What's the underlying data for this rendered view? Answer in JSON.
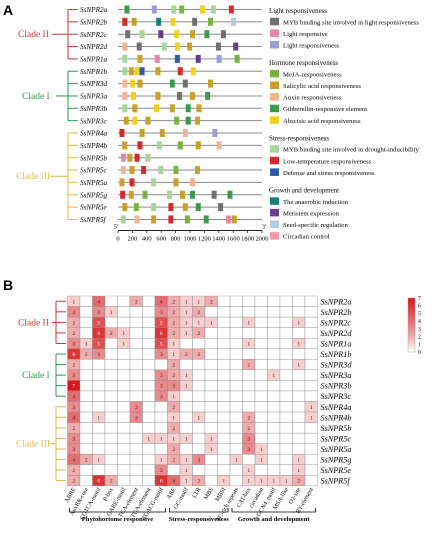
{
  "panel_a": {
    "label": "A",
    "genes": [
      "SsNPR2a",
      "SsNPR2b",
      "SsNPR2c",
      "SsNPR2d",
      "SsNPR1a",
      "SsNPR1b",
      "SsNPR3d",
      "SsNPR3a",
      "SsNPR3b",
      "SsNPR3c",
      "SsNPR4a",
      "SsNPR4b",
      "SsNPR5b",
      "SsNPR5c",
      "SsNPR5a",
      "SsNPR5g",
      "SsNPR5e",
      "SsNPR5f"
    ],
    "clades": [
      {
        "label": "Clade II",
        "color": "#cc3333",
        "start": 0,
        "end": 4
      },
      {
        "label": "Clade I",
        "color": "#2a9a4a",
        "start": 5,
        "end": 9
      },
      {
        "label": "Clade III",
        "color": "#e3b83a",
        "start": 10,
        "end": 17
      }
    ],
    "axis": {
      "ticks": [
        "0",
        "200",
        "400",
        "600",
        "800",
        "1000",
        "1200",
        "1400",
        "1600",
        "1800",
        "2000"
      ],
      "min": 0,
      "max": 2000,
      "start_label": "5'",
      "end_label": "3'"
    },
    "legend": [
      {
        "header": "Light responsiveness",
        "items": [
          {
            "label": "MYB binding site involved in light responsiveness",
            "color": "#707070"
          },
          {
            "label": "Light responsive",
            "color": "#e687a5"
          },
          {
            "label": "Light responsiveness",
            "color": "#9c9cd6"
          }
        ]
      },
      {
        "header": "Hormone responsiveness",
        "items": [
          {
            "label": "MeJA-responsiveness",
            "color": "#78b43c"
          },
          {
            "label": "Salicylic acid responsiveness",
            "color": "#c8a02a"
          },
          {
            "label": "Auxin responsiveness",
            "color": "#f2b493"
          },
          {
            "label": "Gibberellin-responsive element",
            "color": "#3c9a4e"
          },
          {
            "label": "Abscisic acid responsiveness",
            "color": "#f3cf1d"
          }
        ]
      },
      {
        "header": "Stress-responsiveness",
        "items": [
          {
            "label": "MYB binding site involved in drought-inducibility",
            "color": "#a8d49a"
          },
          {
            "label": "Low-temperature responsiveness",
            "color": "#d42a2a"
          },
          {
            "label": "Defense and stress responsiveness",
            "color": "#2c5ea8"
          }
        ]
      },
      {
        "header": "Growth and development",
        "items": [
          {
            "label": "The anaerobic induction",
            "color": "#17807a"
          },
          {
            "label": "Meristem expression",
            "color": "#6a3c8e"
          },
          {
            "label": "Seed-specific regulation",
            "color": "#b2ccea"
          },
          {
            "label": "Circadian control",
            "color": "#f09aaa"
          }
        ]
      }
    ],
    "elements": [
      [
        [
          90,
          6
        ],
        [
          470,
          2
        ],
        [
          740,
          8
        ],
        [
          850,
          3
        ],
        [
          1140,
          7
        ],
        [
          1290,
          8
        ],
        [
          1540,
          9
        ]
      ],
      [
        [
          60,
          9
        ],
        [
          190,
          4
        ],
        [
          530,
          11
        ],
        [
          730,
          7
        ],
        [
          1030,
          0
        ],
        [
          1250,
          3
        ],
        [
          1570,
          13
        ]
      ],
      [
        [
          100,
          0
        ],
        [
          300,
          8
        ],
        [
          560,
          12
        ],
        [
          780,
          7
        ],
        [
          1000,
          4
        ],
        [
          1200,
          6
        ],
        [
          1430,
          0
        ]
      ],
      [
        [
          60,
          5
        ],
        [
          260,
          0
        ],
        [
          610,
          8
        ],
        [
          790,
          7
        ],
        [
          960,
          4
        ],
        [
          1360,
          0
        ],
        [
          1600,
          12
        ]
      ],
      [
        [
          60,
          8
        ],
        [
          270,
          4
        ],
        [
          510,
          1
        ],
        [
          790,
          10
        ],
        [
          1080,
          12
        ],
        [
          1370,
          2
        ],
        [
          1620,
          3
        ]
      ],
      [
        [
          60,
          8
        ],
        [
          150,
          4
        ],
        [
          230,
          7
        ],
        [
          300,
          10
        ],
        [
          520,
          4
        ],
        [
          830,
          9
        ],
        [
          1010,
          7
        ]
      ],
      [
        [
          60,
          5
        ],
        [
          170,
          7
        ],
        [
          270,
          4
        ],
        [
          720,
          6
        ],
        [
          900,
          0
        ],
        [
          1250,
          4
        ]
      ],
      [
        [
          60,
          5
        ],
        [
          180,
          7
        ],
        [
          520,
          4
        ],
        [
          820,
          0
        ],
        [
          1000,
          4
        ],
        [
          1210,
          6
        ]
      ],
      [
        [
          60,
          8
        ],
        [
          200,
          4
        ],
        [
          500,
          7
        ],
        [
          720,
          4
        ],
        [
          940,
          6
        ],
        [
          1090,
          4
        ]
      ],
      [
        [
          80,
          4
        ],
        [
          200,
          7
        ],
        [
          380,
          4
        ],
        [
          780,
          3
        ],
        [
          940,
          6
        ],
        [
          1070,
          4
        ]
      ],
      [
        [
          20,
          9
        ],
        [
          300,
          4
        ],
        [
          580,
          4
        ],
        [
          900,
          5
        ],
        [
          1310,
          2
        ]
      ],
      [
        [
          60,
          4
        ],
        [
          270,
          9
        ],
        [
          540,
          8
        ],
        [
          830,
          3
        ],
        [
          1080,
          4
        ],
        [
          1370,
          5
        ]
      ],
      [
        [
          40,
          1
        ],
        [
          130,
          4
        ],
        [
          230,
          9
        ],
        [
          380,
          8
        ]
      ],
      [
        [
          40,
          5
        ],
        [
          160,
          4
        ],
        [
          320,
          9
        ],
        [
          560,
          8
        ],
        [
          770,
          3
        ],
        [
          1070,
          4
        ]
      ],
      [
        [
          20,
          4
        ],
        [
          160,
          9
        ],
        [
          460,
          8
        ],
        [
          770,
          4
        ],
        [
          1000,
          5
        ]
      ],
      [
        [
          30,
          9
        ],
        [
          150,
          4
        ],
        [
          340,
          3
        ],
        [
          680,
          8
        ],
        [
          860,
          4
        ],
        [
          1000,
          6
        ],
        [
          1300,
          0
        ],
        [
          1520,
          6
        ]
      ],
      [
        [
          60,
          4
        ],
        [
          220,
          3
        ],
        [
          460,
          8
        ],
        [
          700,
          9
        ],
        [
          900,
          4
        ],
        [
          1080,
          6
        ],
        [
          1390,
          0
        ]
      ],
      [
        [
          40,
          8
        ],
        [
          230,
          5
        ],
        [
          460,
          4
        ],
        [
          700,
          9
        ],
        [
          930,
          3
        ],
        [
          1190,
          6
        ],
        [
          1500,
          1
        ],
        [
          1580,
          4
        ]
      ]
    ],
    "lengths": [
      2000,
      2000,
      2000,
      2000,
      2000,
      2000,
      2000,
      2000,
      2000,
      2000,
      2000,
      2000,
      2000,
      2000,
      2000,
      2000,
      2000,
      2000
    ]
  },
  "panel_b": {
    "label": "B",
    "columns": [
      "ABRE",
      "AuxRR-core",
      "CGTCA-motif",
      "P-box",
      "GARE-motif",
      "TCA-element",
      "TGA-element",
      "TGACG-motif",
      "ARE",
      "GC-motif",
      "LTR",
      "MBS",
      "MBSI",
      "TC-rich repeats",
      "CAT-box",
      "circadian",
      "GCN4_motif",
      "MSA-like",
      "O2-site",
      "RY-element"
    ],
    "rows": [
      "SsNPR2a",
      "SsNPR2b",
      "SsNPR2c",
      "SsNPR2d",
      "SsNPR1a",
      "SsNPR1b",
      "SsNPR3d",
      "SsNPR3a",
      "SsNPR3b",
      "SsNPR3c",
      "SsNPR4a",
      "SsNPR4b",
      "SsNPR5b",
      "SsNPR5c",
      "SsNPR5a",
      "SsNPR5g",
      "SsNPR5e",
      "SsNPR5f"
    ],
    "values": [
      [
        1,
        0,
        4,
        0,
        0,
        2,
        0,
        4,
        2,
        1,
        1,
        2,
        0,
        0,
        0,
        0,
        0,
        0,
        0,
        0
      ],
      [
        3,
        0,
        3,
        1,
        0,
        0,
        0,
        3,
        2,
        1,
        2,
        0,
        0,
        0,
        0,
        0,
        0,
        0,
        0,
        0
      ],
      [
        2,
        0,
        5,
        0,
        0,
        0,
        0,
        5,
        2,
        1,
        1,
        1,
        0,
        0,
        1,
        0,
        0,
        0,
        1,
        0
      ],
      [
        2,
        0,
        6,
        2,
        1,
        0,
        0,
        6,
        2,
        1,
        2,
        0,
        0,
        0,
        0,
        0,
        0,
        0,
        0,
        0
      ],
      [
        3,
        1,
        5,
        0,
        1,
        0,
        0,
        5,
        1,
        0,
        0,
        0,
        0,
        0,
        1,
        0,
        0,
        0,
        1,
        0
      ],
      [
        6,
        2,
        3,
        0,
        0,
        0,
        0,
        3,
        1,
        2,
        2,
        0,
        0,
        0,
        0,
        0,
        0,
        0,
        0,
        0
      ],
      [
        2,
        0,
        0,
        0,
        0,
        0,
        0,
        0,
        2,
        0,
        0,
        0,
        0,
        0,
        2,
        0,
        0,
        0,
        1,
        0
      ],
      [
        3,
        0,
        0,
        0,
        0,
        0,
        0,
        3,
        2,
        1,
        0,
        0,
        0,
        0,
        0,
        0,
        1,
        0,
        0,
        0
      ],
      [
        7,
        0,
        0,
        0,
        0,
        0,
        0,
        3,
        3,
        1,
        0,
        0,
        0,
        0,
        0,
        0,
        0,
        0,
        0,
        0
      ],
      [
        4,
        0,
        0,
        0,
        0,
        0,
        0,
        3,
        1,
        0,
        0,
        0,
        0,
        0,
        0,
        0,
        0,
        0,
        0,
        0
      ],
      [
        3,
        0,
        0,
        0,
        0,
        3,
        0,
        0,
        2,
        0,
        0,
        0,
        0,
        0,
        0,
        0,
        0,
        0,
        0,
        1
      ],
      [
        4,
        0,
        1,
        0,
        0,
        3,
        0,
        0,
        1,
        0,
        1,
        0,
        0,
        0,
        2,
        0,
        0,
        0,
        0,
        1
      ],
      [
        2,
        0,
        0,
        0,
        0,
        0,
        0,
        0,
        2,
        0,
        0,
        0,
        0,
        0,
        2,
        0,
        0,
        0,
        0,
        0
      ],
      [
        3,
        0,
        0,
        0,
        0,
        0,
        1,
        1,
        1,
        1,
        0,
        1,
        0,
        0,
        3,
        0,
        0,
        0,
        0,
        0
      ],
      [
        3,
        0,
        0,
        0,
        0,
        0,
        0,
        0,
        2,
        0,
        0,
        1,
        0,
        0,
        3,
        1,
        0,
        0,
        0,
        0
      ],
      [
        4,
        2,
        1,
        0,
        0,
        0,
        0,
        1,
        2,
        1,
        3,
        0,
        0,
        1,
        0,
        1,
        0,
        0,
        1,
        0
      ],
      [
        2,
        0,
        0,
        0,
        0,
        0,
        0,
        3,
        0,
        1,
        0,
        0,
        0,
        0,
        1,
        0,
        0,
        0,
        1,
        0
      ],
      [
        2,
        0,
        6,
        2,
        0,
        0,
        0,
        6,
        4,
        1,
        2,
        0,
        1,
        0,
        1,
        1,
        1,
        1,
        2,
        0
      ]
    ],
    "groups": [
      {
        "label": "Phytohortome responsive",
        "start": 0,
        "end": 7
      },
      {
        "label": "Stress-responsiveness",
        "start": 8,
        "end": 12
      },
      {
        "label": "Growth and development",
        "start": 13,
        "end": 19
      }
    ],
    "colorbar": {
      "min": 0,
      "max": 7,
      "ticks": [
        "0",
        "1",
        "2",
        "3",
        "4",
        "5",
        "6",
        "7"
      ],
      "low_color": "#ffffff",
      "high_color": "#d7191c"
    }
  }
}
